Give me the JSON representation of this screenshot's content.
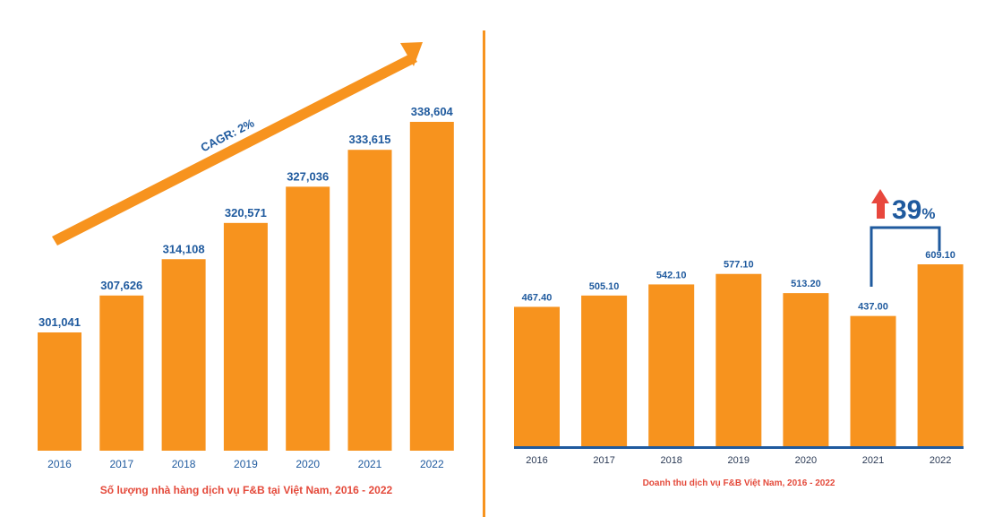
{
  "colors": {
    "bar": "#f7931e",
    "accent": "#f7931e",
    "value_text": "#1f5a9e",
    "axis": "#1f5a9e",
    "title": "#e4493a",
    "badge_arrow": "#e8473d"
  },
  "chart_data": [
    {
      "type": "bar",
      "title": "Số lượng nhà hàng dịch vụ F&B tại Việt Nam, 2016 - 2022",
      "categories": [
        "2016",
        "2017",
        "2018",
        "2019",
        "2020",
        "2021",
        "2022"
      ],
      "values": [
        301041,
        307626,
        314108,
        320571,
        327036,
        333615,
        338604
      ],
      "value_labels": [
        "301,041",
        "307,626",
        "314,108",
        "320,571",
        "327,036",
        "333,615",
        "338,604"
      ],
      "xlabel": "",
      "ylabel": "",
      "grid": false,
      "annotation": "CAGR: 2%"
    },
    {
      "type": "bar",
      "title": "Doanh thu dịch vụ F&B Việt Nam, 2016 - 2022",
      "categories": [
        "2016",
        "2017",
        "2018",
        "2019",
        "2020",
        "2021",
        "2022"
      ],
      "values": [
        467.4,
        505.1,
        542.1,
        577.1,
        513.2,
        437.0,
        609.1
      ],
      "value_labels": [
        "467.40",
        "505.10",
        "542.10",
        "577.10",
        "513.20",
        "437.00",
        "609.10"
      ],
      "xlabel": "",
      "ylabel": "",
      "ylim": [
        0,
        700
      ],
      "grid": false,
      "annotation": {
        "number": "39",
        "unit": "%"
      }
    }
  ]
}
